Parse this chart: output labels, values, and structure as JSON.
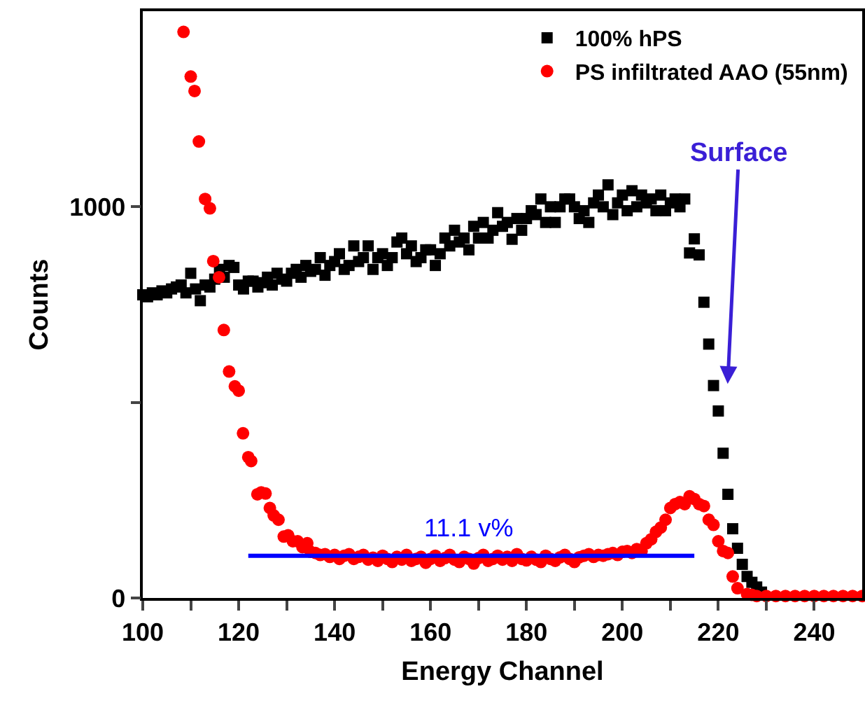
{
  "chart_data": {
    "type": "scatter",
    "xlabel": "Energy Channel",
    "ylabel": "Counts",
    "xlim": [
      100,
      250
    ],
    "ylim": [
      0,
      1500
    ],
    "xticks": [
      100,
      {
        "value": 110,
        "label": null
      },
      120,
      {
        "value": 130,
        "label": null
      },
      140,
      {
        "value": 150,
        "label": null
      },
      160,
      {
        "value": 170,
        "label": null
      },
      180,
      {
        "value": 190,
        "label": null
      },
      200,
      {
        "value": 210,
        "label": null
      },
      220,
      {
        "value": 230,
        "label": null
      },
      240
    ],
    "yticks": [
      0,
      {
        "value": 500,
        "label": null
      },
      1000
    ],
    "grid": false,
    "legend": "top right",
    "series": [
      {
        "name": "100% hPS",
        "color": "#000000",
        "marker": "square",
        "x": [
          100,
          101,
          102,
          103,
          104,
          105,
          106,
          107,
          108,
          109,
          110,
          111,
          112,
          113,
          114,
          115,
          116,
          117,
          118,
          119,
          120,
          121,
          122,
          123,
          124,
          125,
          126,
          127,
          128,
          129,
          130,
          131,
          132,
          133,
          134,
          135,
          136,
          137,
          138,
          139,
          140,
          141,
          142,
          143,
          144,
          145,
          146,
          147,
          148,
          149,
          150,
          151,
          152,
          153,
          154,
          155,
          156,
          157,
          158,
          159,
          160,
          161,
          162,
          163,
          164,
          165,
          166,
          167,
          168,
          169,
          170,
          171,
          172,
          173,
          174,
          175,
          176,
          177,
          178,
          179,
          180,
          181,
          182,
          183,
          184,
          185,
          186,
          187,
          188,
          189,
          190,
          191,
          192,
          193,
          194,
          195,
          196,
          197,
          198,
          199,
          200,
          201,
          202,
          203,
          204,
          205,
          206,
          207,
          208,
          209,
          210,
          211,
          212,
          213,
          214,
          215,
          216,
          217,
          218,
          219,
          220,
          221,
          222,
          223,
          224,
          225,
          226,
          227,
          228,
          229
        ],
        "values": [
          775,
          770,
          780,
          775,
          785,
          780,
          790,
          795,
          800,
          780,
          830,
          790,
          760,
          800,
          795,
          815,
          840,
          820,
          850,
          845,
          800,
          790,
          810,
          810,
          795,
          806,
          820,
          800,
          830,
          815,
          810,
          830,
          840,
          820,
          850,
          835,
          840,
          870,
          825,
          850,
          860,
          880,
          840,
          850,
          900,
          860,
          870,
          900,
          840,
          870,
          880,
          850,
          870,
          910,
          920,
          880,
          900,
          860,
          870,
          890,
          890,
          850,
          880,
          920,
          900,
          940,
          910,
          920,
          890,
          950,
          920,
          960,
          920,
          940,
          985,
          950,
          960,
          917,
          970,
          940,
          970,
          990,
          980,
          1020,
          960,
          1000,
          960,
          1000,
          1020,
          1020,
          1000,
          970,
          990,
          960,
          1010,
          1030,
          1000,
          1056,
          980,
          1010,
          1030,
          990,
          1041,
          1000,
          1030,
          1010,
          1020,
          990,
          1030,
          990,
          1010,
          1020,
          1000,
          1020,
          882,
          918,
          877,
          756,
          649,
          543,
          478,
          370,
          265,
          177,
          127,
          86,
          55,
          40,
          28,
          15
        ]
      },
      {
        "name": "PS infiltrated AAO (55nm)",
        "color": "#ff0000",
        "marker": "circle",
        "x": [
          108.5,
          110,
          110.8,
          111.7,
          113,
          114,
          114.7,
          115.9,
          116.9,
          118,
          119.2,
          120,
          120.9,
          122,
          122.6,
          123.9,
          124.7,
          125.6,
          126.5,
          127.3,
          128.3,
          129.4,
          130.3,
          131.3,
          132.3,
          133.3,
          134.3,
          135,
          136,
          137,
          138,
          139,
          140,
          141,
          142,
          143,
          144,
          145,
          146,
          147,
          148,
          149,
          150,
          151,
          152,
          153,
          154,
          155,
          156,
          157,
          158,
          159,
          160,
          161,
          162,
          163,
          164,
          165,
          166,
          167,
          168,
          169,
          170,
          171,
          172,
          173,
          174,
          175,
          176,
          177,
          178,
          179,
          180,
          181,
          182,
          183,
          184,
          185,
          186,
          187,
          188,
          189,
          190,
          191,
          192,
          193,
          194,
          195,
          196,
          197,
          198,
          199,
          200,
          201,
          202,
          203,
          204,
          205,
          206,
          207,
          208,
          209,
          210,
          211,
          212,
          213,
          214,
          215,
          216,
          217,
          218,
          219,
          220,
          221,
          222,
          223,
          224,
          226,
          227,
          228,
          230,
          232,
          234,
          236,
          238,
          240,
          242,
          244,
          246,
          248,
          250
        ],
        "values": [
          1447,
          1333,
          1296,
          1167,
          1020,
          996,
          861,
          820,
          685,
          579,
          541,
          530,
          421,
          360,
          350,
          265,
          270,
          267,
          230,
          211,
          200,
          157,
          160,
          145,
          145,
          130,
          140,
          118,
          115,
          110,
          112,
          105,
          110,
          100,
          108,
          112,
          100,
          105,
          110,
          98,
          103,
          95,
          108,
          100,
          92,
          105,
          98,
          110,
          95,
          100,
          105,
          90,
          100,
          108,
          95,
          102,
          110,
          98,
          92,
          105,
          100,
          88,
          102,
          110,
          95,
          100,
          108,
          98,
          105,
          95,
          112,
          100,
          96,
          105,
          98,
          92,
          108,
          100,
          95,
          104,
          110,
          100,
          92,
          104,
          108,
          112,
          105,
          110,
          108,
          112,
          115,
          110,
          118,
          120,
          115,
          125,
          120,
          140,
          150,
          169,
          180,
          200,
          230,
          240,
          245,
          240,
          260,
          253,
          240,
          235,
          200,
          187,
          145,
          120,
          115,
          55,
          25,
          10,
          8,
          5,
          5,
          5,
          5,
          5,
          5,
          5,
          5,
          5,
          5,
          5,
          5
        ]
      },
      {
        "type": "line",
        "color": "#0000ff",
        "x": [
          122,
          215
        ],
        "values": [
          108,
          108
        ]
      }
    ],
    "annotations": [
      {
        "text": "11.1 v%",
        "x": 168,
        "y": 108
      },
      "Surface"
    ]
  }
}
